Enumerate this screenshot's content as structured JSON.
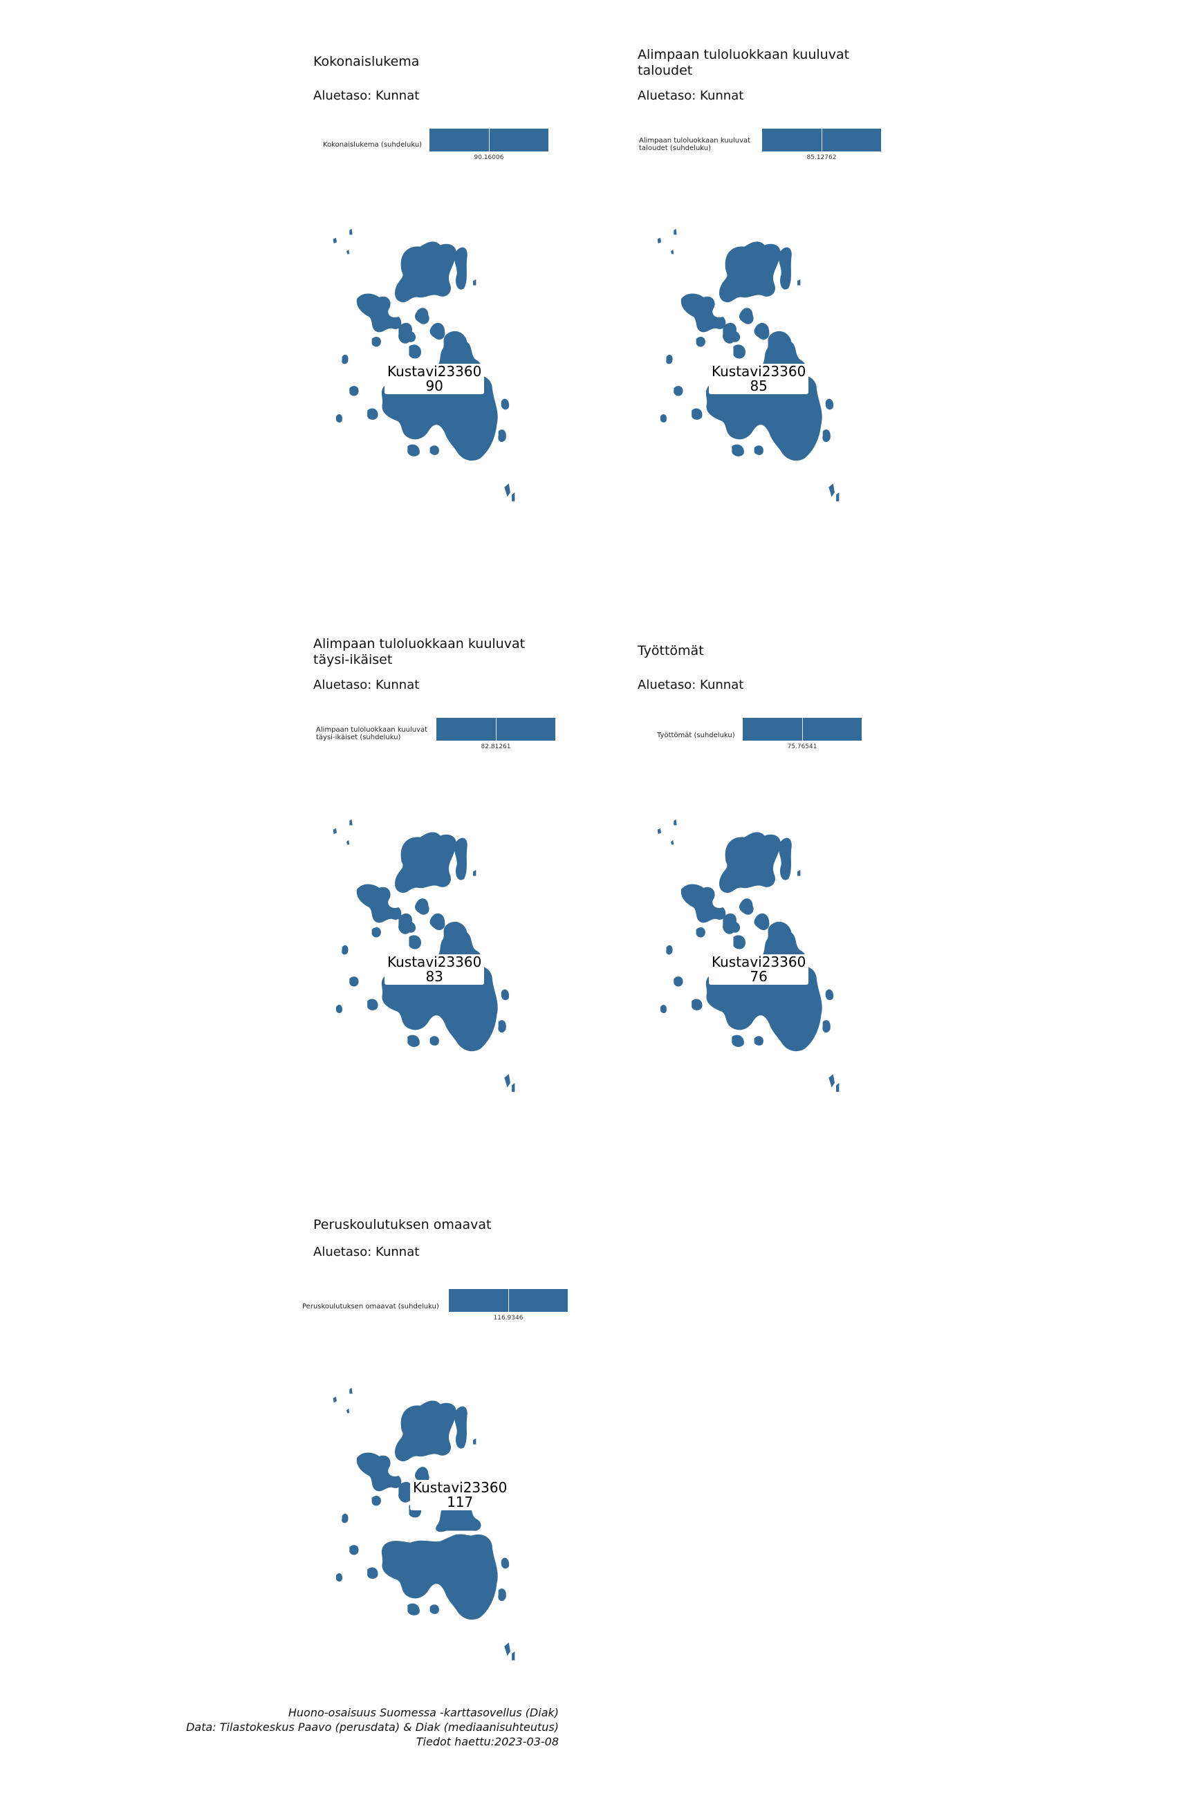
{
  "colors": {
    "fill": "#336a98",
    "background": "#ffffff"
  },
  "panels": [
    {
      "title": "Kokonaislukema",
      "subtitle": "Aluetaso: Kunnat",
      "legend_label": "Kokonaislukema (suhdeluku)",
      "legend_value": "90.16006",
      "area_name": "Kustavi23360",
      "area_value": "90"
    },
    {
      "title": "Alimpaan tuloluokkaan kuuluvat taloudet",
      "subtitle": "Aluetaso: Kunnat",
      "legend_label": "Alimpaan tuloluokkaan kuuluvat taloudet (suhdeluku)",
      "legend_value": "85.12762",
      "area_name": "Kustavi23360",
      "area_value": "85"
    },
    {
      "title": "Alimpaan tuloluokkaan kuuluvat täysi-ikäiset",
      "subtitle": "Aluetaso: Kunnat",
      "legend_label": "Alimpaan tuloluokkaan kuuluvat täysi-ikäiset (suhdeluku)",
      "legend_value": "82.81261",
      "area_name": "Kustavi23360",
      "area_value": "83"
    },
    {
      "title": "Työttömät",
      "subtitle": "Aluetaso: Kunnat",
      "legend_label": "Työttömät (suhdeluku)",
      "legend_value": "75.76541",
      "area_name": "Kustavi23360",
      "area_value": "76"
    },
    {
      "title": "Peruskoulutuksen omaavat",
      "subtitle": "Aluetaso: Kunnat",
      "legend_label": "Peruskoulutuksen omaavat (suhdeluku)",
      "legend_value": "116.9346",
      "area_name": "Kustavi23360",
      "area_value": "117"
    }
  ],
  "caption": {
    "line1": "Huono-osaisuus Suomessa -karttasovellus (Diak)",
    "line2": "Data: Tilastokeskus Paavo (perusdata) & Diak (mediaanisuhteutus)",
    "line3": "Tiedot haettu:2023-03-08"
  }
}
